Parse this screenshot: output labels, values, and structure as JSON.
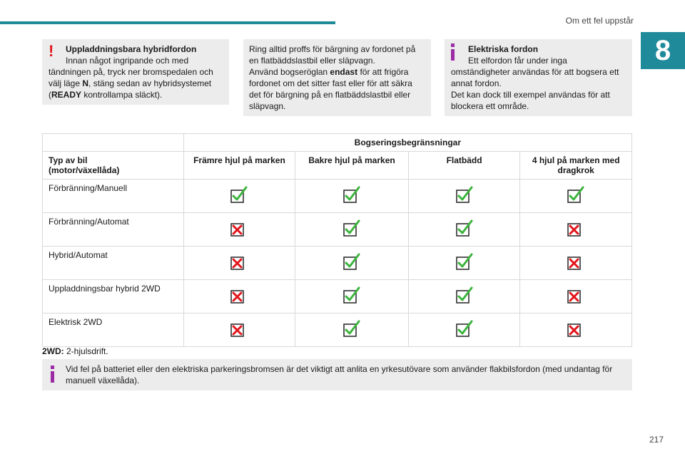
{
  "header": {
    "section_title": "Om ett fel uppstår",
    "chapter": "8"
  },
  "notes": {
    "hybrid": {
      "icon": "warning-exclamation-icon",
      "title": "Uppladdningsbara hybridfordon",
      "l1": "Innan något ingripande och med",
      "l2": "tändningen på, tryck ner bromspedalen och",
      "l3a": "välj läge ",
      "l3b": "N",
      "l3c": ", stäng sedan av hybridsystemet",
      "l4a": "(",
      "l4b": "READY",
      "l4c": " kontrollampa släckt)."
    },
    "bargning": {
      "l1": "Ring alltid proffs för bärgning av fordonet på",
      "l2": "en flatbäddslastbil eller släpvagn.",
      "l3a": "Använd bogseröglan ",
      "l3b": "endast",
      "l3c": " för att frigöra",
      "l4": "fordonet om det sitter fast eller för att säkra",
      "l5": "det för bärgning på en flatbäddslastbil eller",
      "l6": "släpvagn."
    },
    "elektriska": {
      "icon": "info-icon",
      "title": "Elektriska fordon",
      "l1": "Ett elfordon får under inga",
      "l2": "omständigheter användas för att bogsera ett",
      "l3": "annat fordon.",
      "l4": "Det kan dock till exempel användas för att",
      "l5": "blockera ett område."
    },
    "batteri": {
      "icon": "info-icon",
      "l1": "Vid fel på batteriet eller den elektriska parkeringsbromsen är det viktigt att anlita en yrkesutövare som använder flakbilsfordon (med undantag för",
      "l2": "manuell växellåda)."
    }
  },
  "table": {
    "group_header": "Bogseringsbegränsningar",
    "col0_l1": "Typ av bil",
    "col0_l2": "(motor/växellåda)",
    "columns": [
      "Främre hjul på marken",
      "Bakre hjul på marken",
      "Flatbädd",
      "4 hjul på marken med dragkrok"
    ],
    "rows": [
      {
        "label": "Förbränning/Manuell",
        "values": [
          "yes",
          "yes",
          "yes",
          "yes"
        ]
      },
      {
        "label": "Förbränning/Automat",
        "values": [
          "no",
          "yes",
          "yes",
          "no"
        ]
      },
      {
        "label": "Hybrid/Automat",
        "values": [
          "no",
          "yes",
          "yes",
          "no"
        ]
      },
      {
        "label": "Uppladdningsbar hybrid 2WD",
        "values": [
          "no",
          "yes",
          "yes",
          "no"
        ]
      },
      {
        "label": "Elektrisk 2WD",
        "values": [
          "no",
          "yes",
          "yes",
          "no"
        ]
      }
    ],
    "colors": {
      "yes": "#3cb43c",
      "no": "#e2151c"
    }
  },
  "footnote": {
    "term": "2WD:",
    "text": " 2-hjulsdrift."
  },
  "page_number": "217"
}
